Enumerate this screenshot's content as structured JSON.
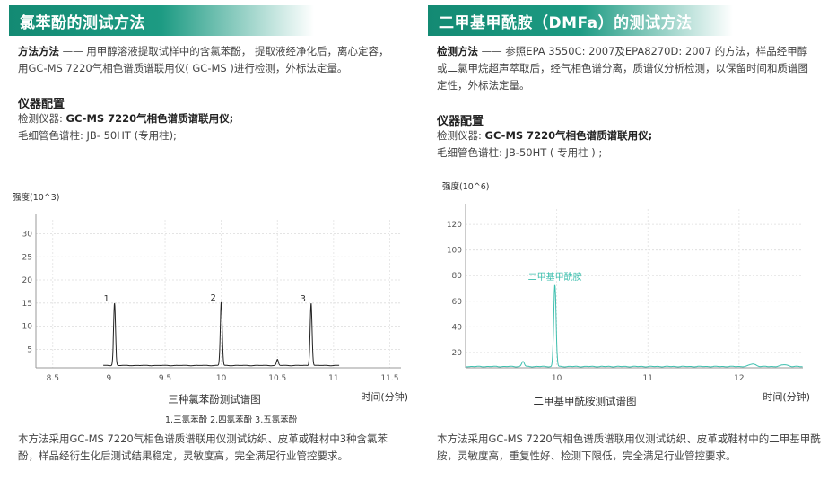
{
  "left": {
    "title": "氯苯酚的测试方法",
    "method_label": "方法方法",
    "method_text": "—— 用甲醇溶液提取试样中的含氯苯酚， 提取液经净化后，离心定容，用GC-MS 7220气相色谱质谱联用仪( GC-MS )进行检测，外标法定量。",
    "config_title": "仪器配置",
    "instrument_label": "检测仪器:",
    "instrument_value": "GC-MS 7220气相色谱质谱联用仪;",
    "column_text": "毛细管色谱柱: JB- 50HT (专用柱);",
    "chart_title": "三种氯苯酚测试谱图",
    "legend_text": "1.三氯苯酚  2.四氯苯酚  3.五氯苯酚",
    "summary": "本方法采用GC-MS 7220气相色谱质谱联用仪测试纺织、皮革或鞋材中3种含氯苯酚，样品经衍生化后测试结果稳定，灵敏度高，完全满足行业管控要求。"
  },
  "right": {
    "title": "二甲基甲酰胺（DMFa）的测试方法",
    "method_label": "检测方法",
    "method_text": "—— 参照EPA 3550C: 2007及EPA8270D: 2007 的方法，样品经甲醇或二氯甲烷超声萃取后，经气相色谱分离，质谱仪分析检测，以保留时间和质谱图定性，外标法定量。",
    "config_title": "仪器配置",
    "instrument_label": "检测仪器:",
    "instrument_value": "GC-MS 7220气相色谱质谱联用仪;",
    "column_text": "毛细管色谱柱: JB-50HT ( 专用柱 ) ;",
    "chart_title": "二甲基甲酰胺测试谱图",
    "summary": "本方法采用GC-MS 7220气相色谱质谱联用仪测试纺织、皮革或鞋材中的二甲基甲酰胺，灵敏度高，重复性好、检测下限低，完全满足行业管控要求。"
  },
  "chart_data": [
    {
      "type": "line",
      "ylabel": "强度(10^3)",
      "xlabel": "时间(分钟)",
      "xlim": [
        8.35,
        11.6
      ],
      "ylim": [
        1,
        33
      ],
      "xticks": [
        8.5,
        9,
        9.5,
        10,
        10.5,
        11,
        11.5
      ],
      "xtick_labels": [
        "8.5",
        "9",
        "9.5",
        "10",
        "10.5",
        "11",
        "11.5"
      ],
      "yticks": [
        5,
        10,
        15,
        20,
        25,
        30
      ],
      "ytick_labels": [
        "5",
        "10",
        "15",
        "20",
        "25",
        "30"
      ],
      "color": "#222222",
      "peaks": [
        {
          "label": "1",
          "x": 9.05,
          "y": 15
        },
        {
          "label": "2",
          "x": 10.0,
          "y": 15.2
        },
        {
          "label": "3",
          "x": 10.8,
          "y": 15
        }
      ],
      "minor_peaks": [
        {
          "x": 10.5,
          "y": 2.8
        }
      ]
    },
    {
      "type": "line",
      "ylabel": "强度(10^6)",
      "xlabel": "时间(分钟)",
      "xlim": [
        9.0,
        12.7
      ],
      "ylim": [
        8,
        132
      ],
      "xticks": [
        10,
        11,
        12
      ],
      "xtick_labels": [
        "10",
        "11",
        "12"
      ],
      "yticks": [
        20,
        40,
        60,
        80,
        100,
        120
      ],
      "ytick_labels": [
        "20",
        "40",
        "60",
        "80",
        "100",
        "120"
      ],
      "color": "#3dbfae",
      "peaks": [
        {
          "label": "二甲基甲酰胺",
          "x": 9.98,
          "y": 73
        }
      ]
    }
  ]
}
